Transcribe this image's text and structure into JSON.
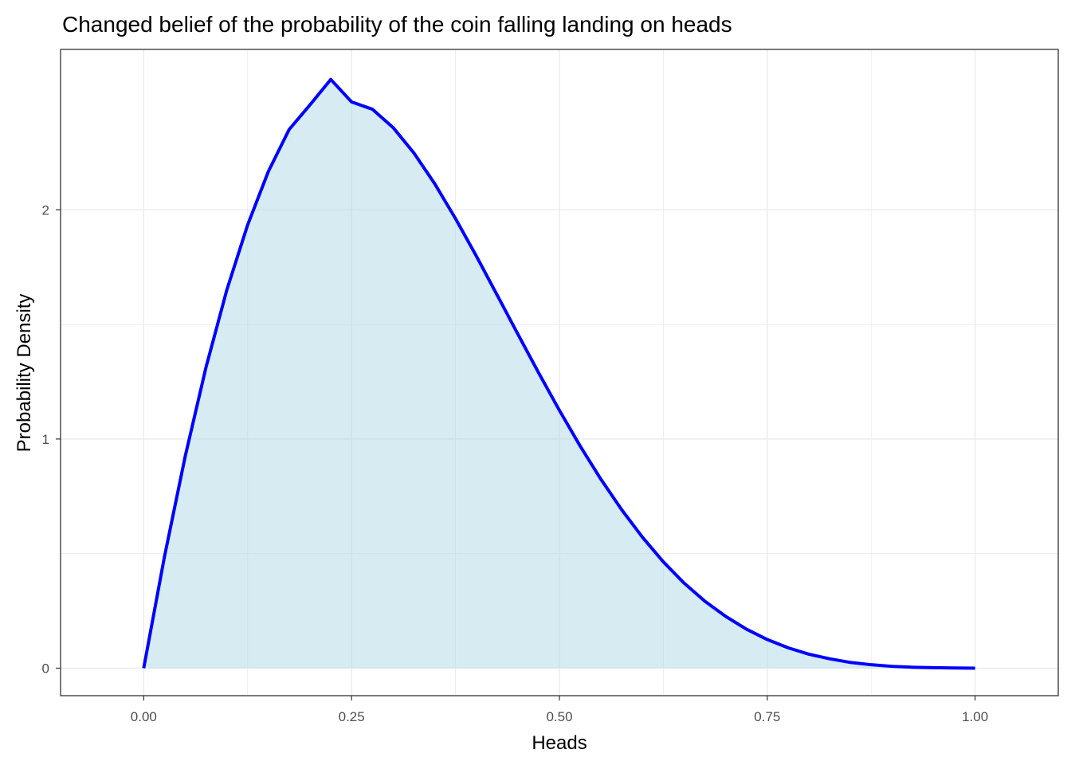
{
  "chart_data": {
    "type": "area",
    "title": "Changed belief of the probability of the coin falling landing on heads",
    "xlabel": "Heads",
    "ylabel": "Probability Density",
    "xlim": [
      -0.1,
      1.1
    ],
    "ylim": [
      -0.12,
      2.7
    ],
    "x_ticks": [
      0.0,
      0.25,
      0.5,
      0.75,
      1.0
    ],
    "x_tick_labels": [
      "0.00",
      "0.25",
      "0.50",
      "0.75",
      "1.00"
    ],
    "y_ticks": [
      0,
      1,
      2
    ],
    "y_tick_labels": [
      "0",
      "1",
      "2"
    ],
    "grid": true,
    "legend": "none",
    "series": [
      {
        "x": [
          0.0,
          0.025,
          0.05,
          0.075,
          0.1,
          0.125,
          0.15,
          0.175,
          0.2,
          0.225,
          0.25,
          0.275,
          0.3,
          0.325,
          0.35,
          0.375,
          0.4,
          0.425,
          0.45,
          0.475,
          0.5,
          0.525,
          0.55,
          0.575,
          0.6,
          0.625,
          0.65,
          0.675,
          0.7,
          0.725,
          0.75,
          0.775,
          0.8,
          0.825,
          0.85,
          0.875,
          0.9,
          0.925,
          0.95,
          0.975,
          1.0
        ],
        "values": [
          0.0,
          0.487,
          0.926,
          1.314,
          1.651,
          1.934,
          2.168,
          2.351,
          2.458,
          2.569,
          2.471,
          2.439,
          2.359,
          2.248,
          2.114,
          1.962,
          1.799,
          1.629,
          1.458,
          1.289,
          1.125,
          0.969,
          0.824,
          0.691,
          0.571,
          0.464,
          0.371,
          0.292,
          0.226,
          0.17,
          0.125,
          0.089,
          0.061,
          0.041,
          0.025,
          0.015,
          0.008,
          0.004,
          0.002,
          0.001,
          0.0
        ]
      }
    ],
    "colors": {
      "line": "#0000ff",
      "fill": "#add8e6",
      "grid": "#ebebeb",
      "border": "#333333"
    }
  }
}
